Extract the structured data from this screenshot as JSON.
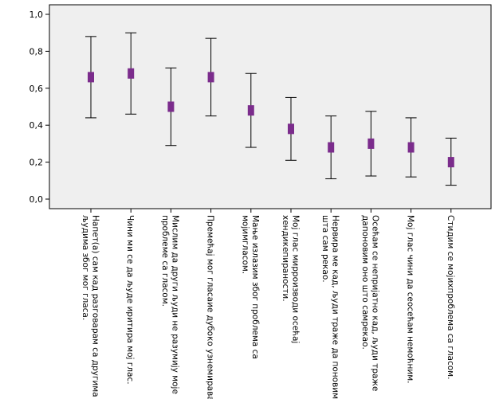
{
  "chart_data": {
    "type": "errorbar",
    "title": "",
    "xlabel": "",
    "ylabel": "",
    "ylim": [
      0,
      1.0
    ],
    "y_ticks": [
      "0,0",
      "0,2",
      "0,4",
      "0,6",
      "0,8",
      "1,0"
    ],
    "y_tick_values": [
      0,
      0.2,
      0.4,
      0.6,
      0.8,
      1.0
    ],
    "grid": false,
    "colors": {
      "marker": "#7b2c8c",
      "errorbar": "#000000",
      "plot_bg": "#efefef"
    },
    "categories": [
      [
        "Напет(а) сам кад  разговарам са другима",
        "људима због мог гласа."
      ],
      [
        "Чини ми се да људе иритира мој глас."
      ],
      [
        "Мислим да други људи не разумију моје",
        "проблеме са гласом."
      ],
      [
        "Премећај мог гласаие дубоко узнемирава."
      ],
      [
        "Мање излазим због проблема са",
        "мојимгласом."
      ],
      [
        "Мој глас миpроизводи осећај",
        "хендикепираности."
      ],
      [
        "Нервира ме кад, људи траже да поновим",
        "шта сам рекао."
      ],
      [
        "Осећам се непријатно кад, људи траже",
        "дапоновим оно што самрекао."
      ],
      [
        "Мој глас чини да сеосећам немоћним."
      ],
      [
        "Стидим се мојихпроблема са гласом."
      ]
    ],
    "means": [
      0.66,
      0.68,
      0.5,
      0.66,
      0.48,
      0.38,
      0.28,
      0.3,
      0.28,
      0.2
    ],
    "lower": [
      0.44,
      0.46,
      0.29,
      0.45,
      0.28,
      0.21,
      0.11,
      0.125,
      0.12,
      0.075
    ],
    "upper": [
      0.88,
      0.9,
      0.71,
      0.87,
      0.68,
      0.55,
      0.45,
      0.475,
      0.44,
      0.33
    ]
  }
}
